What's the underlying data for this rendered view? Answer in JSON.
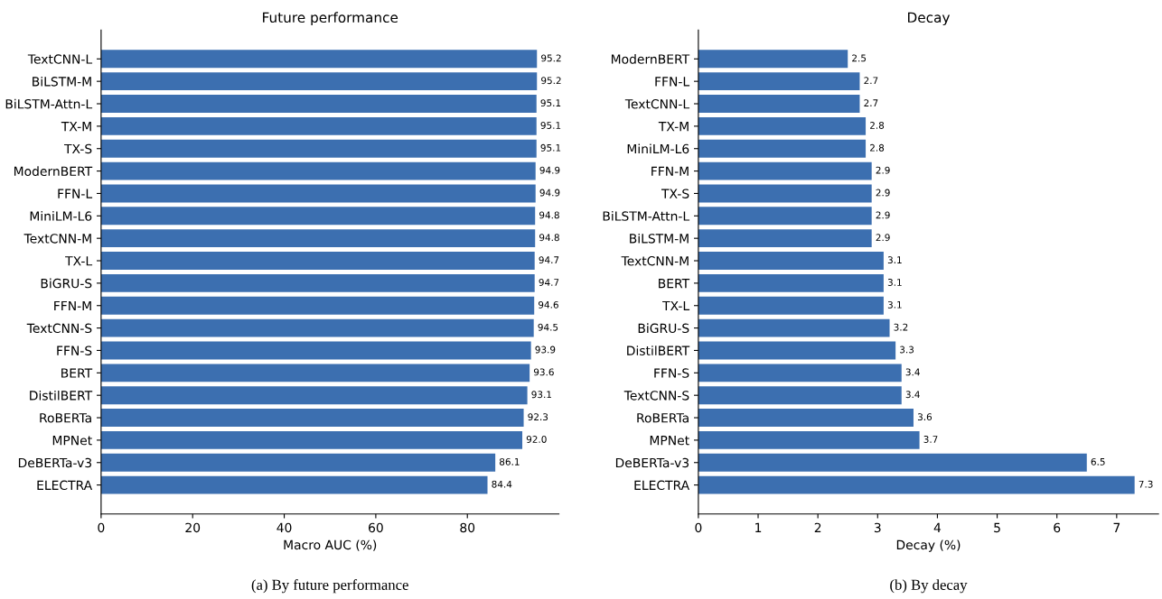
{
  "chart_data": [
    {
      "type": "bar",
      "orientation": "horizontal",
      "title": "Future performance",
      "xlabel": "Macro AUC (%)",
      "categories": [
        "TextCNN-L",
        "BiLSTM-M",
        "BiLSTM-Attn-L",
        "TX-M",
        "TX-S",
        "ModernBERT",
        "FFN-L",
        "MiniLM-L6",
        "TextCNN-M",
        "TX-L",
        "BiGRU-S",
        "FFN-M",
        "TextCNN-S",
        "FFN-S",
        "BERT",
        "DistilBERT",
        "RoBERTa",
        "MPNet",
        "DeBERTa-v3",
        "ELECTRA"
      ],
      "values": [
        95.2,
        95.2,
        95.1,
        95.1,
        95.1,
        94.9,
        94.9,
        94.8,
        94.8,
        94.7,
        94.7,
        94.6,
        94.5,
        93.9,
        93.6,
        93.1,
        92.3,
        92.0,
        86.1,
        84.4
      ],
      "value_labels": [
        "95.2",
        "95.2",
        "95.1",
        "95.1",
        "95.1",
        "94.9",
        "94.9",
        "94.8",
        "94.8",
        "94.7",
        "94.7",
        "94.6",
        "94.5",
        "93.9",
        "93.6",
        "93.1",
        "92.3",
        "92.0",
        "86.1",
        "84.4"
      ],
      "color": "#3c6fb0",
      "xlim": [
        0,
        100
      ],
      "xticks": [
        0,
        20,
        40,
        60,
        80
      ],
      "annotations": [
        "(a) By future performance"
      ]
    },
    {
      "type": "bar",
      "orientation": "horizontal",
      "title": "Decay",
      "xlabel": "Decay (%)",
      "categories": [
        "ModernBERT",
        "FFN-L",
        "TextCNN-L",
        "TX-M",
        "MiniLM-L6",
        "FFN-M",
        "TX-S",
        "BiLSTM-Attn-L",
        "BiLSTM-M",
        "TextCNN-M",
        "BERT",
        "TX-L",
        "BiGRU-S",
        "DistilBERT",
        "FFN-S",
        "TextCNN-S",
        "RoBERTa",
        "MPNet",
        "DeBERTa-v3",
        "ELECTRA"
      ],
      "values": [
        2.5,
        2.7,
        2.7,
        2.8,
        2.8,
        2.9,
        2.9,
        2.9,
        2.9,
        3.1,
        3.1,
        3.1,
        3.2,
        3.3,
        3.4,
        3.4,
        3.6,
        3.7,
        6.5,
        7.3
      ],
      "color": "#3c6fb0",
      "xlim": [
        0,
        7.7
      ],
      "xticks": [
        0,
        1,
        2,
        3,
        4,
        5,
        6,
        7
      ],
      "data_labels": true,
      "annotations": [
        "(b) By decay"
      ]
    }
  ]
}
